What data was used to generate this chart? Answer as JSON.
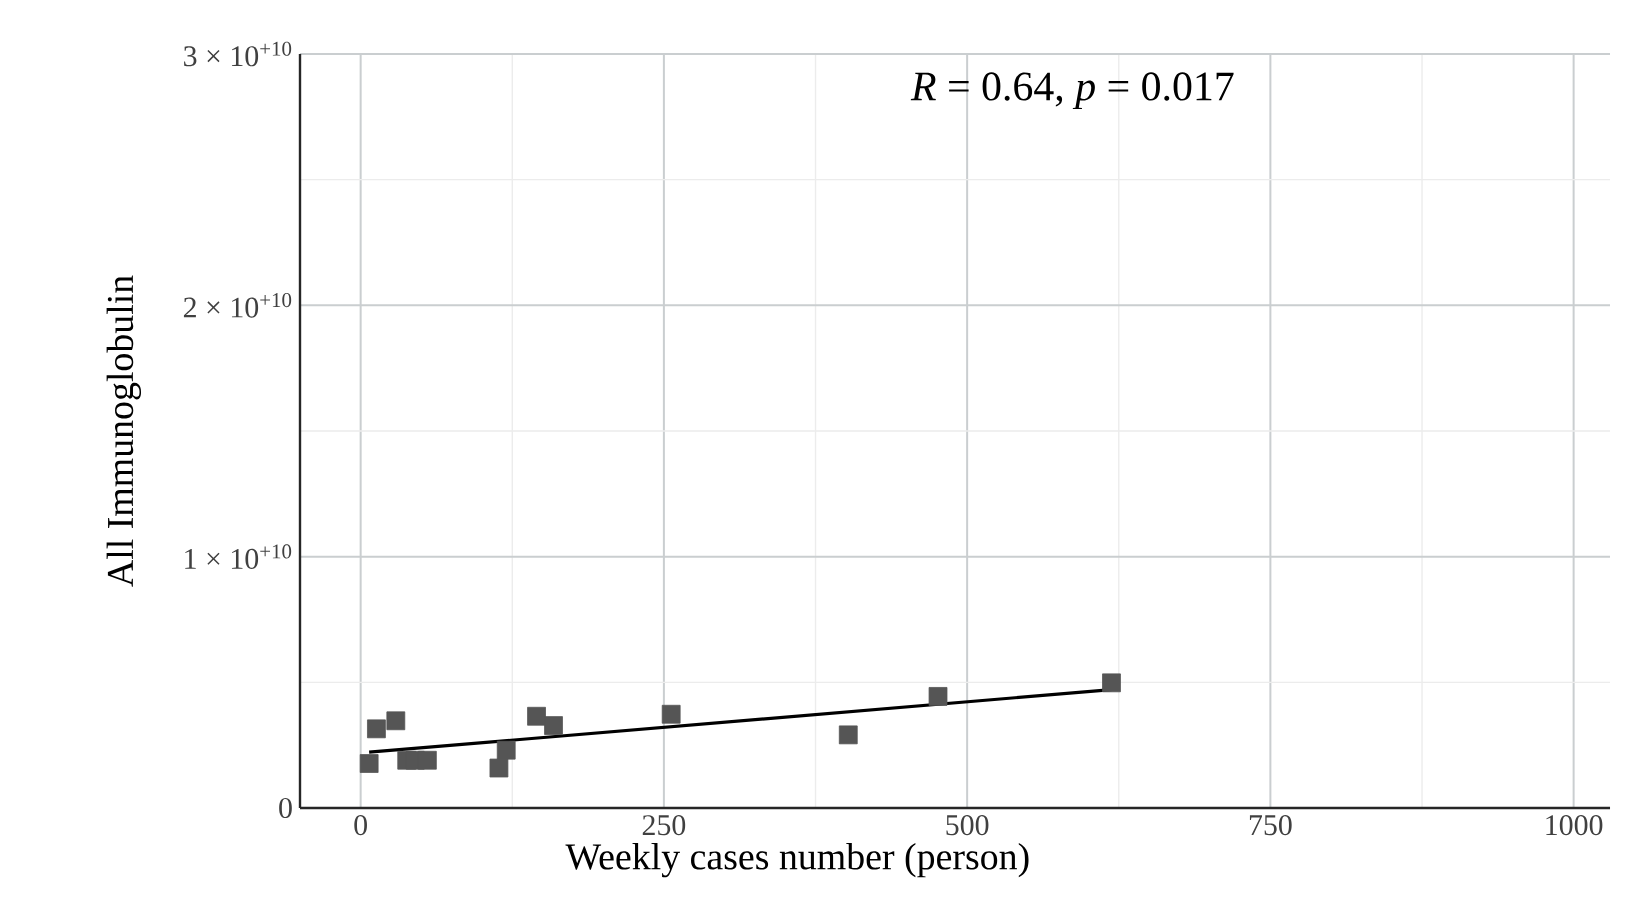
{
  "chart_data": {
    "type": "scatter",
    "xlabel": "Weekly cases number (person)",
    "ylabel": "All Immunoglobulin",
    "annotations": [
      "*R* = 0.64, *p* = 0.017"
    ],
    "series": [
      {
        "color": "#555555",
        "marker": "square",
        "x": [
          7,
          13,
          29,
          38,
          45,
          55,
          114,
          120,
          145,
          159,
          256,
          402,
          476,
          619
        ],
        "values": [
          1770000000.0,
          3150000000.0,
          3470000000.0,
          1900000000.0,
          1900000000.0,
          1900000000.0,
          1590000000.0,
          2300000000.0,
          3650000000.0,
          3280000000.0,
          3730000000.0,
          2910000000.0,
          4440000000.0,
          4980000000.0
        ]
      },
      {
        "type": "line",
        "marker": "none",
        "color": "#000000",
        "x": [
          7,
          619
        ],
        "values": [
          2220000000.0,
          4710000000.0
        ]
      }
    ],
    "xlim": [
      -50,
      1030
    ],
    "xticks": [
      0,
      250,
      500,
      750,
      1000
    ],
    "ylim": [
      0,
      30000000000.0
    ],
    "yticks": [
      0,
      {
        "value": 10000000000.0,
        "label": "1 × 10$^{+10}$"
      },
      {
        "value": 20000000000.0,
        "label": "2 × 10$^{+10}$"
      },
      {
        "value": 30000000000.0,
        "label": "3 × 10$^{+10}$"
      }
    ],
    "grid": true
  }
}
